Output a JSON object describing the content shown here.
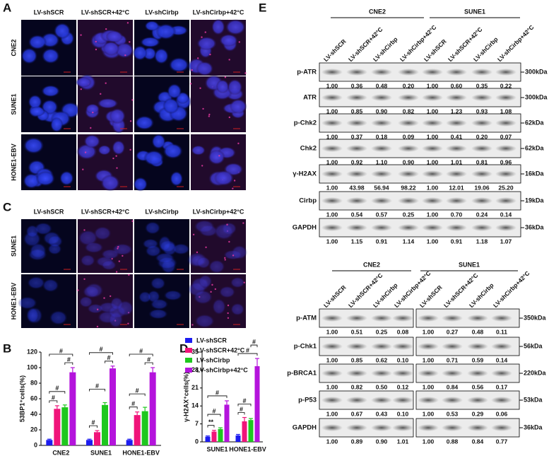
{
  "panel_labels": [
    "A",
    "B",
    "C",
    "D",
    "E"
  ],
  "panel_a": {
    "columns": [
      "LV-shSCR",
      "LV-shSCR+42°C",
      "LV-shCirbp",
      "LV-shCirbp+42°C"
    ],
    "rows": [
      "CNE2",
      "SUNE1",
      "HONE1-EBV"
    ]
  },
  "panel_c": {
    "columns": [
      "LV-shSCR",
      "LV-shSCR+42°C",
      "LV-shCirbp",
      "LV-shCirbp+42°C"
    ],
    "rows": [
      "SUNE1",
      "HONE1-EBV"
    ]
  },
  "chart_data": [
    {
      "type": "bar",
      "ylabel": "53BP1⁺cells(%)",
      "categories": [
        "CNE2",
        "SUNE1",
        "HONE1-EBV"
      ],
      "ylim": [
        0,
        120
      ],
      "yticks": [
        0,
        20,
        40,
        60,
        80,
        100,
        120
      ],
      "series": [
        {
          "name": "LV-shSCR",
          "color": "#1c1cf0",
          "values": [
            7,
            7,
            7
          ],
          "errors": [
            1,
            1,
            1
          ]
        },
        {
          "name": "LV-shSCR+42°C",
          "color": "#f0147a",
          "values": [
            47,
            17,
            39
          ],
          "errors": [
            4,
            2,
            4
          ]
        },
        {
          "name": "LV-shCirbp",
          "color": "#1ec81e",
          "values": [
            49,
            52,
            44
          ],
          "errors": [
            3,
            3,
            5
          ]
        },
        {
          "name": "LV-shCirbp+42°C",
          "color": "#b414dc",
          "values": [
            94,
            99,
            94
          ],
          "errors": [
            6,
            3,
            6
          ]
        }
      ],
      "annotations": [
        "#",
        "#",
        "#",
        "#",
        "#",
        "#",
        "#",
        "#",
        "#",
        "#",
        "#",
        "#"
      ]
    },
    {
      "type": "bar",
      "ylabel": "γ-H2AX⁺cells(%)",
      "categories": [
        "SUNE1",
        "HONE1-EBV"
      ],
      "ylim": [
        0,
        35
      ],
      "yticks": [
        0,
        7,
        14,
        21,
        28,
        35
      ],
      "series": [
        {
          "name": "LV-shSCR",
          "color": "#1c1cf0",
          "values": [
            2,
            2.5
          ],
          "errors": [
            0.3,
            0.4
          ]
        },
        {
          "name": "LV-shSCR+42°C",
          "color": "#f0147a",
          "values": [
            4,
            8
          ],
          "errors": [
            0.5,
            1.5
          ]
        },
        {
          "name": "LV-shCirbp",
          "color": "#1ec81e",
          "values": [
            5,
            8.5
          ],
          "errors": [
            0.5,
            0.6
          ]
        },
        {
          "name": "LV-shCirbp+42°C",
          "color": "#b414dc",
          "values": [
            14.5,
            29.5
          ],
          "errors": [
            1.5,
            3
          ]
        }
      ],
      "annotations": [
        "**",
        "#",
        "#",
        "#",
        "#",
        "#",
        "#"
      ]
    }
  ],
  "panel_e": {
    "top": {
      "groups": [
        "CNE2",
        "SUNE1"
      ],
      "lanes": [
        "LV-shSCR",
        "LV-shSCR+42°C",
        "LV-shCirbp",
        "LV-shCirbp+42°C",
        "LV-shSCR",
        "LV-shSCR+42°C",
        "LV-shCirbp",
        "LV-shCirbp+42°C"
      ],
      "blots": [
        {
          "name": "p-ATR",
          "size": "300kDa",
          "values": [
            "1.00",
            "0.36",
            "0.48",
            "0.20",
            "1.00",
            "0.60",
            "0.35",
            "0.22"
          ]
        },
        {
          "name": "ATR",
          "size": "300kDa",
          "values": [
            "1.00",
            "0.85",
            "0.90",
            "0.82",
            "1.00",
            "1.23",
            "0.93",
            "1.08"
          ]
        },
        {
          "name": "p-Chk2",
          "size": "62kDa",
          "values": [
            "1.00",
            "0.37",
            "0.18",
            "0.09",
            "1.00",
            "0.41",
            "0.20",
            "0.07"
          ]
        },
        {
          "name": "Chk2",
          "size": "62kDa",
          "values": [
            "1.00",
            "0.92",
            "1.10",
            "0.90",
            "1.00",
            "1.01",
            "0.81",
            "0.96"
          ]
        },
        {
          "name": "γ-H2AX",
          "size": "16kDa",
          "values": [
            "1.00",
            "43.98",
            "56.94",
            "98.22",
            "1.00",
            "12.01",
            "19.06",
            "25.20"
          ]
        },
        {
          "name": "Cirbp",
          "size": "19kDa",
          "values": [
            "1.00",
            "0.54",
            "0.57",
            "0.25",
            "1.00",
            "0.70",
            "0.24",
            "0.14"
          ]
        },
        {
          "name": "GAPDH",
          "size": "36kDa",
          "values": [
            "1.00",
            "1.15",
            "0.91",
            "1.14",
            "1.00",
            "0.91",
            "1.18",
            "1.07"
          ]
        }
      ]
    },
    "bottom": {
      "groups": [
        "CNE2",
        "SUNE1"
      ],
      "lanes": [
        "LV-shSCR",
        "LV-shSCR+42°C",
        "LV-shCirbp",
        "LV-shCirbp+42°C",
        "LV-shSCR",
        "LV-shSCR+42°C",
        "LV-shCirbp",
        "LV-shCirbp+42°C"
      ],
      "blots": [
        {
          "name": "p-ATM",
          "size": "350kDa",
          "values": [
            "1.00",
            "0.51",
            "0.25",
            "0.08",
            "1.00",
            "0.27",
            "0.48",
            "0.11"
          ]
        },
        {
          "name": "p-Chk1",
          "size": "56kDa",
          "values": [
            "1.00",
            "0.85",
            "0.62",
            "0.10",
            "1.00",
            "0.71",
            "0.59",
            "0.14"
          ]
        },
        {
          "name": "p-BRCA1",
          "size": "220kDa",
          "values": [
            "1.00",
            "0.82",
            "0.50",
            "0.12",
            "1.00",
            "0.84",
            "0.56",
            "0.17"
          ]
        },
        {
          "name": "p-P53",
          "size": "53kDa",
          "values": [
            "1.00",
            "0.67",
            "0.43",
            "0.10",
            "1.00",
            "0.53",
            "0.29",
            "0.06"
          ]
        },
        {
          "name": "GAPDH",
          "size": "36kDa",
          "values": [
            "1.00",
            "0.89",
            "0.90",
            "1.01",
            "1.00",
            "0.88",
            "0.84",
            "0.77"
          ]
        }
      ]
    }
  }
}
